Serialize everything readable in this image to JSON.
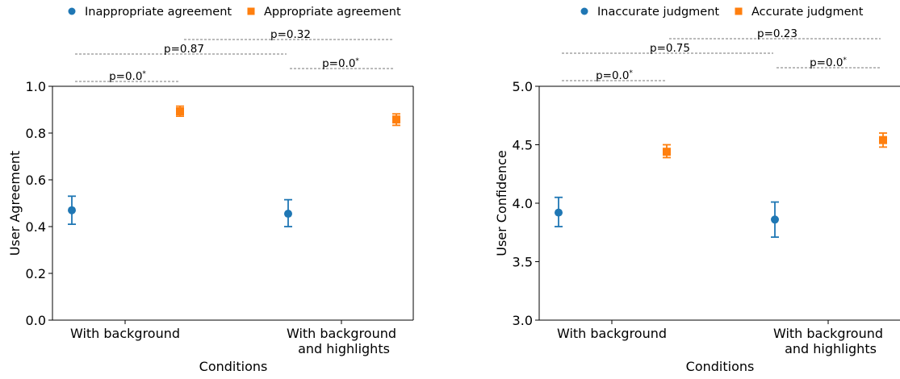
{
  "chart_data": [
    {
      "type": "scatter",
      "errorbars": true,
      "title": "",
      "xlabel": "Conditions",
      "ylabel": "User Agreement",
      "ylim": [
        0.0,
        1.0
      ],
      "yticks": [
        "0.0",
        "0.2",
        "0.4",
        "0.6",
        "0.8",
        "1.0"
      ],
      "categories": [
        [
          "With background"
        ],
        [
          "With background",
          "and highlights"
        ]
      ],
      "legend_position": "top",
      "series": [
        {
          "name": "Inappropriate agreement",
          "color": "#1f77b4",
          "marker": "circle",
          "values": [
            0.47,
            0.455
          ],
          "err_low": [
            0.41,
            0.4
          ],
          "err_high": [
            0.53,
            0.515
          ]
        },
        {
          "name": "Appropriate agreement",
          "color": "#ff7f0e",
          "marker": "square",
          "values": [
            0.893,
            0.858
          ],
          "err_low": [
            0.872,
            0.833
          ],
          "err_high": [
            0.915,
            0.882
          ]
        }
      ],
      "comparisons": [
        {
          "label": "p=0.32",
          "star": "",
          "from": "Inappropriate agreement: With background and highlights",
          "to": "Appropriate agreement: With background and highlights"
        },
        {
          "label": "p=0.87",
          "star": "",
          "from": "Inappropriate agreement: With background",
          "to": "Inappropriate agreement: With background and highlights"
        },
        {
          "label": "p=0.0",
          "star": "*",
          "from": "Appropriate agreement: With background and highlights",
          "to": "Appropriate agreement: With background and highlights"
        },
        {
          "label": "p=0.0",
          "star": "*",
          "from": "Inappropriate agreement: With background",
          "to": "Appropriate agreement: With background"
        }
      ]
    },
    {
      "type": "scatter",
      "errorbars": true,
      "title": "",
      "xlabel": "Conditions",
      "ylabel": "User Confidence",
      "ylim": [
        3.0,
        5.0
      ],
      "yticks": [
        "3.0",
        "3.5",
        "4.0",
        "4.5",
        "5.0"
      ],
      "categories": [
        [
          "With background"
        ],
        [
          "With background",
          "and highlights"
        ]
      ],
      "legend_position": "top",
      "series": [
        {
          "name": "Inaccurate judgment",
          "color": "#1f77b4",
          "marker": "circle",
          "values": [
            3.92,
            3.86
          ],
          "err_low": [
            3.8,
            3.71
          ],
          "err_high": [
            4.05,
            4.01
          ]
        },
        {
          "name": "Accurate judgment",
          "color": "#ff7f0e",
          "marker": "square",
          "values": [
            4.44,
            4.54
          ],
          "err_low": [
            4.39,
            4.48
          ],
          "err_high": [
            4.5,
            4.6
          ]
        }
      ],
      "comparisons": [
        {
          "label": "p=0.23",
          "star": "",
          "from": "Inaccurate judgment: With background and highlights",
          "to": "Accurate judgment: With background and highlights"
        },
        {
          "label": "p=0.75",
          "star": "",
          "from": "Inaccurate judgment: With background",
          "to": "Inaccurate judgment: With background and highlights"
        },
        {
          "label": "p=0.0",
          "star": "*",
          "from": "Accurate judgment: With background and highlights",
          "to": "Accurate judgment: With background and highlights"
        },
        {
          "label": "p=0.0",
          "star": "*",
          "from": "Inaccurate judgment: With background",
          "to": "Accurate judgment: With background"
        }
      ]
    }
  ]
}
